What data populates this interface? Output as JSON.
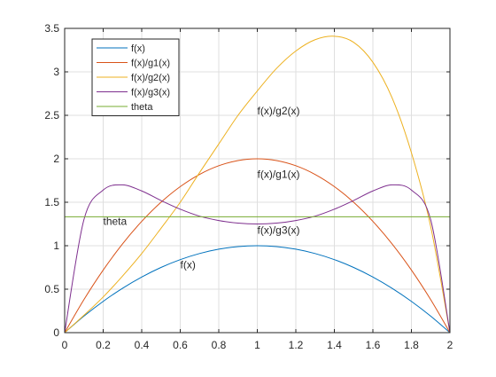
{
  "chart_data": {
    "type": "line",
    "title": "",
    "xlabel": "",
    "ylabel": "",
    "xlim": [
      0,
      2
    ],
    "ylim": [
      0,
      3.5
    ],
    "xticks": [
      0,
      0.2,
      0.4,
      0.6,
      0.8,
      1,
      1.2,
      1.4,
      1.6,
      1.8,
      2
    ],
    "xtick_labels": [
      "0",
      "0.2",
      "0.4",
      "0.6",
      "0.8",
      "1",
      "1.2",
      "1.4",
      "1.6",
      "1.8",
      "2"
    ],
    "yticks": [
      0,
      0.5,
      1,
      1.5,
      2,
      2.5,
      3,
      3.5
    ],
    "ytick_labels": [
      "0",
      "0.5",
      "1",
      "1.5",
      "2",
      "2.5",
      "3",
      "3.5"
    ],
    "grid": true,
    "legend_position": "top-left",
    "x": [
      0,
      0.1,
      0.2,
      0.3,
      0.4,
      0.5,
      0.6,
      0.7,
      0.8,
      0.9,
      1.0,
      1.1,
      1.2,
      1.3,
      1.4,
      1.5,
      1.6,
      1.7,
      1.8,
      1.9,
      2.0
    ],
    "series": [
      {
        "name": "f(x)",
        "color": "#0072BD",
        "values": [
          0,
          0.19,
          0.36,
          0.51,
          0.64,
          0.75,
          0.84,
          0.91,
          0.96,
          0.99,
          1.0,
          0.99,
          0.96,
          0.91,
          0.84,
          0.75,
          0.64,
          0.51,
          0.36,
          0.19,
          0
        ]
      },
      {
        "name": "f(x)/g1(x)",
        "color": "#D95319",
        "values": [
          0,
          0.38,
          0.72,
          1.02,
          1.28,
          1.5,
          1.68,
          1.82,
          1.92,
          1.98,
          2.0,
          1.98,
          1.92,
          1.82,
          1.68,
          1.5,
          1.28,
          1.02,
          0.72,
          0.38,
          0
        ]
      },
      {
        "name": "f(x)/g2(x)",
        "color": "#EDB120",
        "values": [
          0,
          0.2,
          0.41,
          0.65,
          0.91,
          1.2,
          1.5,
          1.84,
          2.17,
          2.5,
          2.78,
          3.04,
          3.24,
          3.37,
          3.41,
          3.34,
          3.11,
          2.7,
          2.07,
          1.22,
          0
        ]
      },
      {
        "name": "f(x)/g3(x)",
        "color": "#7E2F8E",
        "values": [
          0,
          1.3,
          1.64,
          1.7,
          1.63,
          1.52,
          1.42,
          1.34,
          1.29,
          1.26,
          1.25,
          1.26,
          1.29,
          1.34,
          1.42,
          1.52,
          1.63,
          1.7,
          1.64,
          1.3,
          0
        ]
      },
      {
        "name": "theta",
        "color": "#77AC30",
        "values": [
          1.333,
          1.333,
          1.333,
          1.333,
          1.333,
          1.333,
          1.333,
          1.333,
          1.333,
          1.333,
          1.333,
          1.333,
          1.333,
          1.333,
          1.333,
          1.333,
          1.333,
          1.333,
          1.333,
          1.333,
          1.333
        ]
      }
    ],
    "annotations": [
      {
        "text": "f(x)/g2(x)",
        "x": 1.0,
        "y": 2.55
      },
      {
        "text": "f(x)/g1(x)",
        "x": 1.0,
        "y": 1.82
      },
      {
        "text": "theta",
        "x": 0.2,
        "y": 1.28
      },
      {
        "text": "f(x)/g3(x)",
        "x": 1.0,
        "y": 1.18
      },
      {
        "text": "f(x)",
        "x": 0.6,
        "y": 0.78
      }
    ]
  }
}
